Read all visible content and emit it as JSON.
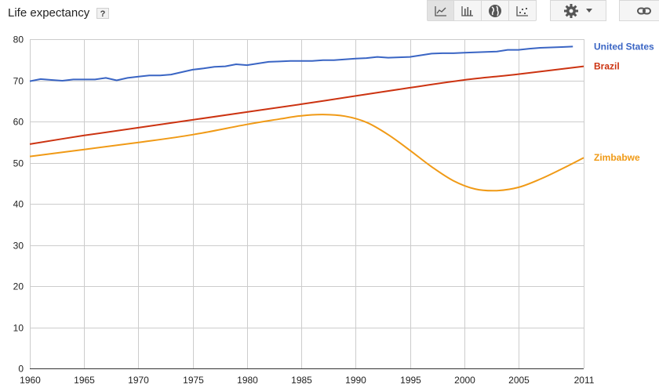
{
  "header": {
    "title": "Life expectancy",
    "help_label": "?"
  },
  "toolbar": {
    "buttons": [
      {
        "icon": "line-chart-icon",
        "active": true
      },
      {
        "icon": "bar-chart-icon",
        "active": false
      },
      {
        "icon": "globe-icon",
        "active": false
      },
      {
        "icon": "scatter-chart-icon",
        "active": false
      }
    ],
    "settings_icon": "gear-icon",
    "dropdown_icon": "caret-down-icon",
    "link_icon": "link-icon"
  },
  "chart_data": {
    "type": "line",
    "title": "Life expectancy",
    "xlim": [
      1960,
      2011
    ],
    "ylim": [
      0,
      80
    ],
    "x_ticks": [
      "1960",
      "1965",
      "1970",
      "1975",
      "1980",
      "1985",
      "1990",
      "1995",
      "2000",
      "2005",
      "2011"
    ],
    "y_ticks": [
      "0",
      "10",
      "20",
      "30",
      "40",
      "50",
      "60",
      "70",
      "80"
    ],
    "grid": true,
    "legend_placement": "right, at line ends",
    "series": [
      {
        "name": "United States",
        "color": "#3a65c4",
        "x": [
          1960,
          1961,
          1962,
          1963,
          1964,
          1965,
          1966,
          1967,
          1968,
          1969,
          1970,
          1971,
          1972,
          1973,
          1974,
          1975,
          1976,
          1977,
          1978,
          1979,
          1980,
          1981,
          1982,
          1983,
          1984,
          1985,
          1986,
          1987,
          1988,
          1989,
          1990,
          1991,
          1992,
          1993,
          1994,
          1995,
          1996,
          1997,
          1998,
          1999,
          2000,
          2001,
          2002,
          2003,
          2004,
          2005,
          2006,
          2007,
          2008,
          2009,
          2010
        ],
        "values": [
          69.8,
          70.3,
          70.1,
          69.9,
          70.2,
          70.2,
          70.2,
          70.6,
          70.0,
          70.6,
          70.9,
          71.2,
          71.2,
          71.4,
          72.0,
          72.6,
          72.9,
          73.3,
          73.4,
          73.9,
          73.7,
          74.1,
          74.5,
          74.6,
          74.7,
          74.7,
          74.7,
          74.9,
          74.9,
          75.1,
          75.3,
          75.4,
          75.7,
          75.5,
          75.6,
          75.7,
          76.1,
          76.5,
          76.6,
          76.6,
          76.7,
          76.8,
          76.9,
          77.0,
          77.4,
          77.4,
          77.7,
          77.9,
          78.0,
          78.1,
          78.2
        ]
      },
      {
        "name": "Brazil",
        "color": "#cc3311",
        "x": [
          1960,
          1965,
          1970,
          1975,
          1980,
          1985,
          1990,
          1995,
          2000,
          2005,
          2011
        ],
        "values": [
          54.5,
          56.6,
          58.5,
          60.4,
          62.3,
          64.2,
          66.2,
          68.2,
          70.1,
          71.5,
          73.4
        ]
      },
      {
        "name": "Zimbabwe",
        "color": "#f09a16",
        "x": [
          1960,
          1965,
          1970,
          1975,
          1980,
          1983,
          1985,
          1987,
          1989,
          1991,
          1993,
          1995,
          1997,
          1999,
          2001,
          2003,
          2005,
          2007,
          2009,
          2011
        ],
        "values": [
          51.5,
          53.2,
          54.9,
          56.8,
          59.3,
          60.6,
          61.4,
          61.7,
          61.3,
          59.8,
          56.8,
          53.0,
          49.0,
          45.6,
          43.6,
          43.2,
          44.0,
          46.0,
          48.5,
          51.2
        ]
      }
    ]
  }
}
